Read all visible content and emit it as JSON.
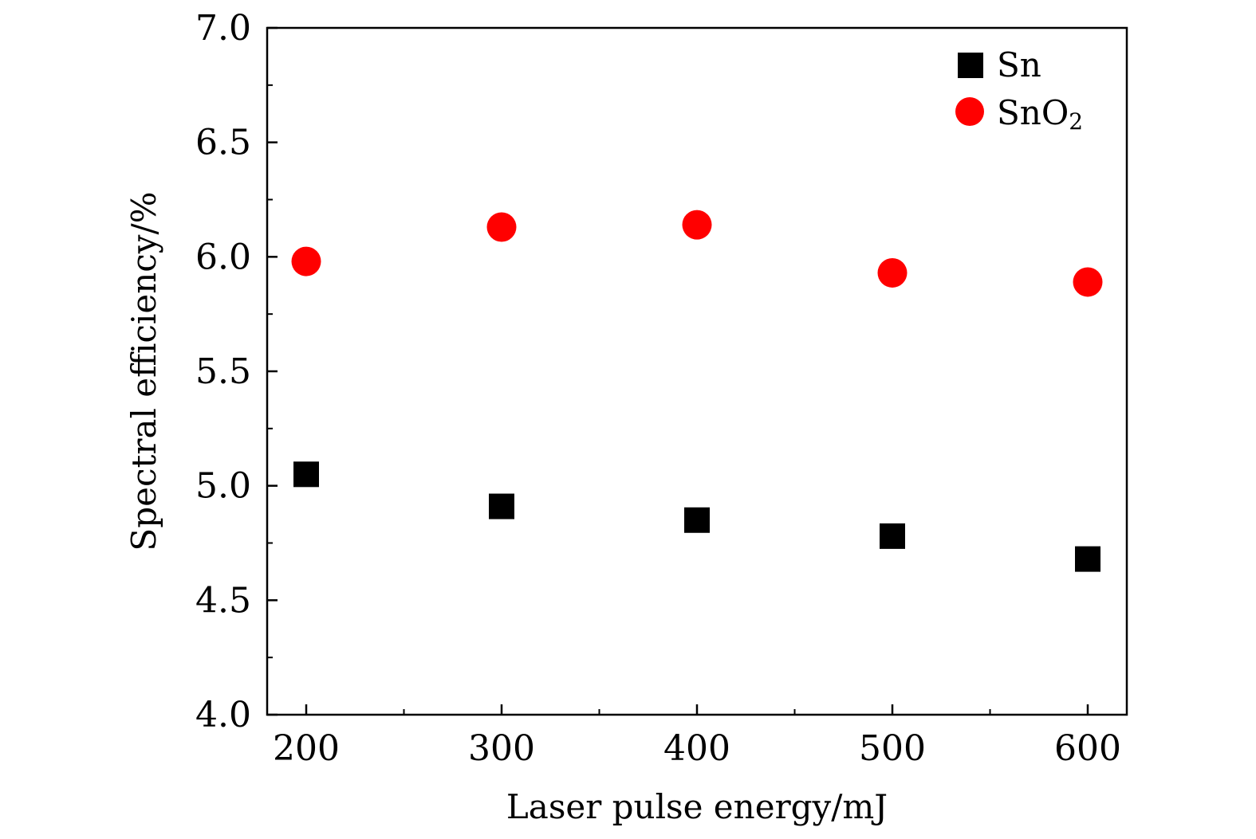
{
  "chart_data": {
    "type": "scatter",
    "title": "",
    "xlabel": "Laser pulse energy/mJ",
    "ylabel": "Spectral efficiency/%",
    "xlim": [
      180,
      620
    ],
    "ylim": [
      4.0,
      7.0
    ],
    "x_ticks": [
      "200",
      "300",
      "400",
      "500",
      "600"
    ],
    "y_ticks": [
      "4.0",
      "4.5",
      "5.0",
      "5.5",
      "6.0",
      "6.5",
      "7.0"
    ],
    "legend_position": "top-right",
    "grid": false,
    "series": [
      {
        "name": "Sn",
        "legend_label": "Sn",
        "marker": "square",
        "color": "#000000",
        "x": [
          200,
          300,
          400,
          500,
          600
        ],
        "values": [
          5.05,
          4.91,
          4.85,
          4.78,
          4.68
        ]
      },
      {
        "name": "SnO2",
        "legend_label": "SnO",
        "legend_subscript": "2",
        "marker": "circle",
        "color": "#ff0000",
        "x": [
          200,
          300,
          400,
          500,
          600
        ],
        "values": [
          5.98,
          6.13,
          6.14,
          5.93,
          5.89
        ]
      }
    ]
  }
}
